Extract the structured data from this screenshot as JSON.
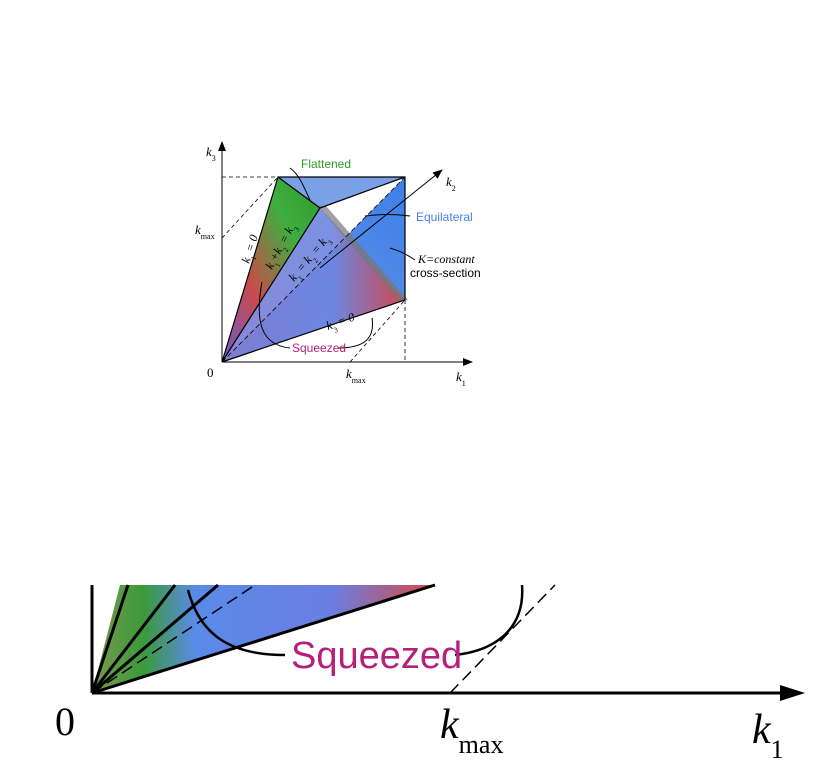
{
  "top": {
    "axis_labels": {
      "k3": [
        {
          "text": "k"
        },
        {
          "sub": "3"
        }
      ],
      "k2": [
        {
          "text": "k"
        },
        {
          "sub": "2"
        }
      ],
      "k1": [
        {
          "text": "k"
        },
        {
          "sub": "1"
        }
      ],
      "kmax_vertical": [
        {
          "text": "k"
        },
        {
          "sub": "max"
        }
      ],
      "kmax_horizontal": [
        {
          "text": "k"
        },
        {
          "sub": "max"
        }
      ]
    },
    "origin": "0",
    "annotations": {
      "flattened": "Flattened",
      "equilateral": "Equilateral",
      "k_constant": "K=constant",
      "cross_section": "cross-section",
      "squeezed": "Squeezed"
    },
    "face_labels": {
      "k1_zero": [
        {
          "text": "k"
        },
        {
          "sub": "1"
        },
        {
          "text": " = 0"
        }
      ],
      "k1_plus_k2": [
        {
          "text": "k"
        },
        {
          "sub": "1"
        },
        {
          "text": "+k"
        },
        {
          "sub": "2"
        },
        {
          "text": " = k"
        },
        {
          "sub": "3"
        }
      ],
      "equal": [
        {
          "text": "k"
        },
        {
          "sub": "1"
        },
        {
          "text": " = k"
        },
        {
          "sub": "2"
        },
        {
          "text": " = k"
        },
        {
          "sub": "3"
        }
      ],
      "k3_zero": [
        {
          "text": "k"
        },
        {
          "sub": "3"
        },
        {
          "text": " = 0"
        }
      ]
    }
  },
  "zoom": {
    "origin": "0",
    "kmax": [
      {
        "text": "k"
      },
      {
        "sub": "max"
      }
    ],
    "k1": [
      {
        "text": "k"
      },
      {
        "sub": "1"
      }
    ],
    "squeezed": "Squeezed"
  }
}
